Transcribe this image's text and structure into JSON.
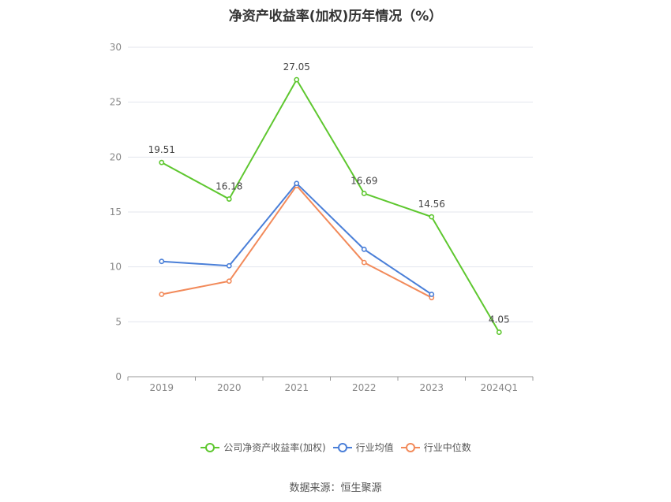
{
  "chart_data": {
    "type": "line",
    "title": "净资产收益率(加权)历年情况（%）",
    "categories": [
      "2019",
      "2020",
      "2021",
      "2022",
      "2023",
      "2024Q1"
    ],
    "ylim": [
      0,
      30
    ],
    "yticks": [
      0,
      5,
      10,
      15,
      20,
      25,
      30
    ],
    "grid": true,
    "legend_position": "bottom",
    "series": [
      {
        "name": "公司净资产收益率(加权)",
        "color": "#5ec72f",
        "values": [
          19.51,
          16.18,
          27.05,
          16.69,
          14.56,
          4.05
        ],
        "show_labels": true
      },
      {
        "name": "行业均值",
        "color": "#4a7fd8",
        "values": [
          10.5,
          10.1,
          17.6,
          11.6,
          7.5,
          null
        ],
        "show_labels": false
      },
      {
        "name": "行业中位数",
        "color": "#f28a5a",
        "values": [
          7.5,
          8.7,
          17.4,
          10.4,
          7.2,
          null
        ],
        "show_labels": false
      }
    ]
  },
  "source": "数据来源：恒生聚源"
}
